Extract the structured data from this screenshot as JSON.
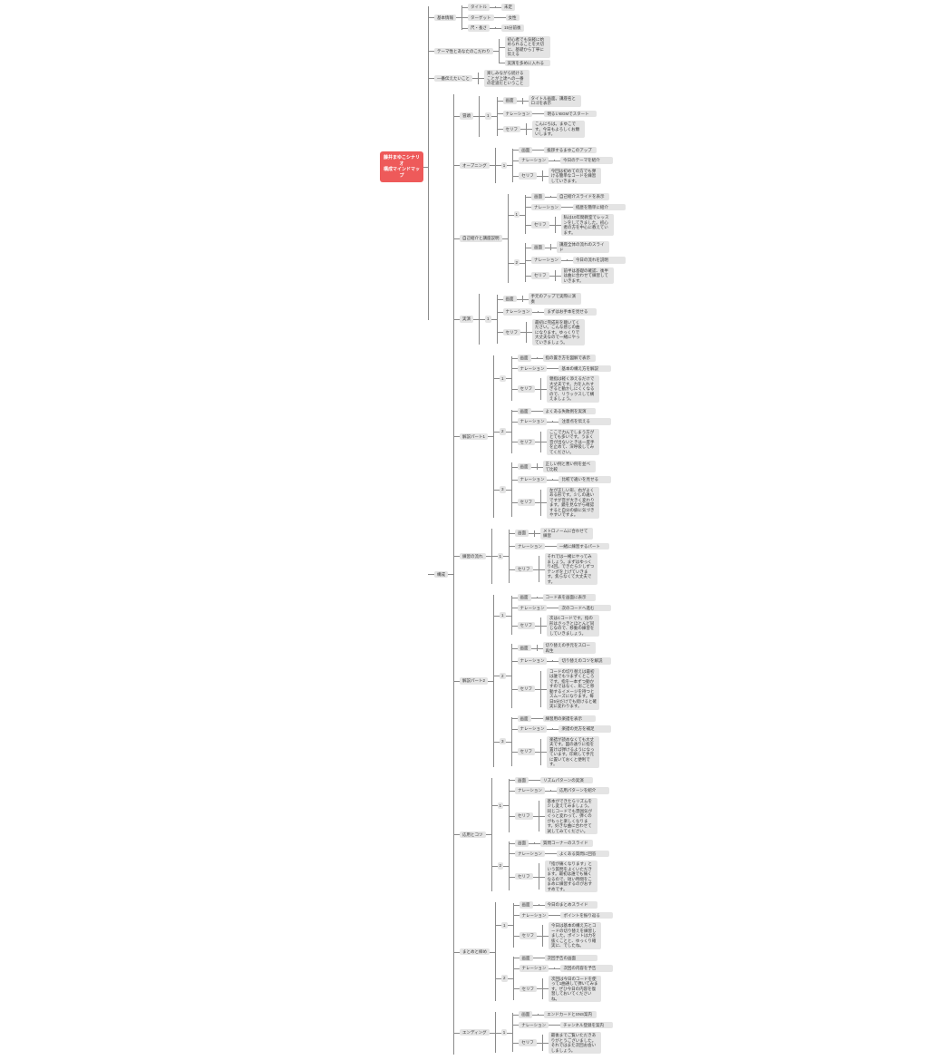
{
  "app": {
    "title": "シナリオ構成マインドマップ"
  },
  "colors": {
    "root_bg": "#ee5a5a",
    "root_text": "#ffffff",
    "node_bg": "#e4e4e4",
    "node_text": "#383838",
    "connector": "#8a8a8a",
    "background": "#ffffff"
  },
  "root": {
    "line1": "藤井まゆこシナリオ",
    "line2": "構成マインドマップ"
  },
  "branches": [
    {
      "label": "基本情報",
      "type": "items",
      "items": [
        {
          "label": "タイトル",
          "value": "未定"
        },
        {
          "label": "ターゲット",
          "value": "女性"
        },
        {
          "label": "尺・長さ",
          "value": "15分前後"
        }
      ]
    },
    {
      "label": "テーマ性とあなたのこだわり",
      "type": "notes",
      "notes": [
        "初心者でも気軽に始められることを大切に、基礎から丁寧に伝える",
        "実演を多めに入れる"
      ]
    },
    {
      "label": "一番伝えたいこと",
      "type": "notes",
      "notes": [
        "楽しみながら続けることが上達への一番の近道だということ"
      ]
    },
    {
      "label": "構成",
      "type": "sections",
      "sections": [
        {
          "label": "冒頭",
          "groups": [
            {
              "num": "1",
              "rows": [
                {
                  "field": "画面",
                  "text": "タイトル画面。講座名とロゴを表示"
                },
                {
                  "field": "ナレーション",
                  "text": "明るいBGMでスタート"
                },
                {
                  "field": "セリフ",
                  "text": "こんにちは。まゆこです。今日もよろしくお願いします。"
                }
              ]
            }
          ]
        },
        {
          "label": "オープニング",
          "groups": [
            {
              "num": "1",
              "rows": [
                {
                  "field": "画面",
                  "text": "挨拶するまゆこのアップ"
                },
                {
                  "field": "ナレーション",
                  "text": "今日のテーマを紹介"
                },
                {
                  "field": "セリフ",
                  "text": "今回は初めての方でも弾ける簡単なコードを練習していきます。"
                }
              ]
            }
          ]
        },
        {
          "label": "自己紹介と講座説明",
          "groups": [
            {
              "num": "1",
              "rows": [
                {
                  "field": "画面",
                  "text": "自己紹介スライドを表示"
                },
                {
                  "field": "ナレーション",
                  "text": "経歴を簡単に紹介"
                },
                {
                  "field": "セリフ",
                  "text": "私は10年間教室でレッスンをしてきました。初心者の方を中心に教えています。"
                }
              ]
            },
            {
              "num": "2",
              "rows": [
                {
                  "field": "画面",
                  "text": "講座全体の流れのスライド"
                },
                {
                  "field": "ナレーション",
                  "text": "今日の流れを説明"
                },
                {
                  "field": "セリフ",
                  "text": "前半は基礎の確認、後半は曲に合わせて練習していきます。"
                }
              ]
            }
          ]
        },
        {
          "label": "実演",
          "groups": [
            {
              "num": "1",
              "rows": [
                {
                  "field": "画面",
                  "text": "手元のアップで実際に演奏"
                },
                {
                  "field": "ナレーション",
                  "text": "まずはお手本を見せる"
                },
                {
                  "field": "セリフ",
                  "text": "最初に完成形を聴いてください。こんな感じの曲になります。ゆっくりで大丈夫なので一緒にやっていきましょう。"
                }
              ]
            }
          ]
        },
        {
          "label": "解説パート1",
          "groups": [
            {
              "num": "1",
              "rows": [
                {
                  "field": "画面",
                  "text": "指の置き方を図解で表示"
                },
                {
                  "field": "ナレーション",
                  "text": "基本の構え方を解説"
                },
                {
                  "field": "セリフ",
                  "text": "親指は軽く添えるだけで大丈夫です。力を入れすぎると動かしにくくなるので、リラックスして構えましょう。"
                }
              ]
            },
            {
              "num": "2",
              "rows": [
                {
                  "field": "画面",
                  "text": "よくある失敗例を実演"
                },
                {
                  "field": "ナレーション",
                  "text": "注意点を伝える"
                },
                {
                  "field": "セリフ",
                  "text": "ここで力んでしまう方がとても多いです。うまく音が出ないときは一度手を止めて、深呼吸してみてください。"
                }
              ]
            },
            {
              "num": "3",
              "rows": [
                {
                  "field": "画面",
                  "text": "正しい例と悪い例を並べて比較"
                },
                {
                  "field": "ナレーション",
                  "text": "比較で違いを見せる"
                },
                {
                  "field": "セリフ",
                  "text": "左が正しい形、右がよくある形です。少しの違いですが音が大きく変わります。鏡を見ながら確認すると自分の癖に気づきやすいですよ。"
                }
              ]
            }
          ]
        },
        {
          "label": "練習の流れ",
          "groups": [
            {
              "num": "1",
              "rows": [
                {
                  "field": "画面",
                  "text": "メトロノームに合わせて練習"
                },
                {
                  "field": "ナレーション",
                  "text": "一緒に練習するパート"
                },
                {
                  "field": "セリフ",
                  "text": "それでは一緒にやってみましょう。まずはゆっくり4回。できたら少しずつテンポを上げていきます。焦らなくて大丈夫です。"
                }
              ]
            }
          ]
        },
        {
          "label": "解説パート2",
          "groups": [
            {
              "num": "1",
              "rows": [
                {
                  "field": "画面",
                  "text": "コード表を画面に表示"
                },
                {
                  "field": "ナレーション",
                  "text": "次のコードへ進む"
                },
                {
                  "field": "セリフ",
                  "text": "次はCコードです。指の形はさっきとほとんど同じなので、移動の練習をしていきましょう。"
                }
              ]
            },
            {
              "num": "2",
              "rows": [
                {
                  "field": "画面",
                  "text": "切り替えの手元をスロー再生"
                },
                {
                  "field": "ナレーション",
                  "text": "切り替えのコツを解説"
                },
                {
                  "field": "セリフ",
                  "text": "コードの切り替えは最初は誰でもつまずくところです。指を一本ずつ動かすのではなく、形ごと移動するイメージを持つとスムーズになります。毎日5分だけでも続けると確実に変わります。"
                }
              ]
            },
            {
              "num": "3",
              "rows": [
                {
                  "field": "画面",
                  "text": "練習用の楽譜を表示"
                },
                {
                  "field": "ナレーション",
                  "text": "楽譜の見方を補足"
                },
                {
                  "field": "セリフ",
                  "text": "楽譜が読めなくても大丈夫です。図の通りに指を置けば弾けるようになっています。印刷して手元に置いておくと便利です。"
                }
              ]
            }
          ]
        },
        {
          "label": "応用とコツ",
          "groups": [
            {
              "num": "1",
              "rows": [
                {
                  "field": "画面",
                  "text": "リズムパターンの実演"
                },
                {
                  "field": "ナレーション",
                  "text": "応用パターンを紹介"
                },
                {
                  "field": "セリフ",
                  "text": "基本ができたらリズムを少し変えてみましょう。同じコードでも雰囲気がぐっと変わって、弾くのがもっと楽しくなります。好きな曲に合わせて試してみてください。"
                }
              ]
            },
            {
              "num": "2",
              "rows": [
                {
                  "field": "画面",
                  "text": "質問コーナーのスライド"
                },
                {
                  "field": "ナレーション",
                  "text": "よくある質問に回答"
                },
                {
                  "field": "セリフ",
                  "text": "「指が痛くなります」という質問をよくいただきます。最初は誰でも痛くなるので、短い時間をこまめに練習するのがおすすめです。"
                }
              ]
            }
          ]
        },
        {
          "label": "まとめと締め",
          "groups": [
            {
              "num": "1",
              "rows": [
                {
                  "field": "画面",
                  "text": "今日のまとめスライド"
                },
                {
                  "field": "ナレーション",
                  "text": "ポイントを振り返る"
                },
                {
                  "field": "セリフ",
                  "text": "今日は基本の構え方とコードの切り替えを練習しました。ポイントは力を抜くことと、ゆっくり確実に、でしたね。"
                }
              ]
            },
            {
              "num": "2",
              "rows": [
                {
                  "field": "画面",
                  "text": "次回予告の画面"
                },
                {
                  "field": "ナレーション",
                  "text": "次回の内容を予告"
                },
                {
                  "field": "セリフ",
                  "text": "次回は今日のコードを使って1曲通して弾いてみます。ぜひ今日の内容を復習しておいてくださいね。"
                }
              ]
            }
          ]
        },
        {
          "label": "エンディング",
          "groups": [
            {
              "num": "1",
              "rows": [
                {
                  "field": "画面",
                  "text": "エンドカードとSNS案内"
                },
                {
                  "field": "ナレーション",
                  "text": "チャンネル登録を案内"
                },
                {
                  "field": "セリフ",
                  "text": "最後までご覧いただきありがとうございました。それではまた次回お会いしましょう。"
                }
              ]
            }
          ]
        }
      ]
    }
  ]
}
